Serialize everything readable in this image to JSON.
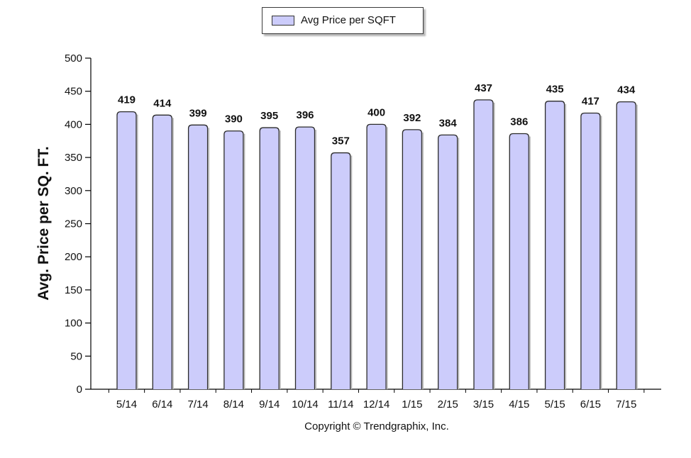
{
  "legend": {
    "label": "Avg Price per SQFT"
  },
  "copyright": "Copyright © Trendgraphix, Inc.",
  "colors": {
    "bar_fill": "#ccccfb",
    "bar_stroke": "#2b2b2b",
    "axis": "#000000"
  },
  "chart_data": {
    "type": "bar",
    "title": "",
    "xlabel": "",
    "ylabel": "Avg. Price per SQ. FT.",
    "categories": [
      "5/14",
      "6/14",
      "7/14",
      "8/14",
      "9/14",
      "10/14",
      "11/14",
      "12/14",
      "1/15",
      "2/15",
      "3/15",
      "4/15",
      "5/15",
      "6/15",
      "7/15"
    ],
    "series": [
      {
        "name": "Avg Price per SQFT",
        "values": [
          419,
          414,
          399,
          390,
          395,
          396,
          357,
          400,
          392,
          384,
          437,
          386,
          435,
          417,
          434
        ]
      }
    ],
    "ylim": [
      0,
      500
    ],
    "yticks": [
      0,
      50,
      100,
      150,
      200,
      250,
      300,
      350,
      400,
      450,
      500
    ],
    "data_labels": true,
    "grid": false,
    "legend_position": "top-center"
  }
}
